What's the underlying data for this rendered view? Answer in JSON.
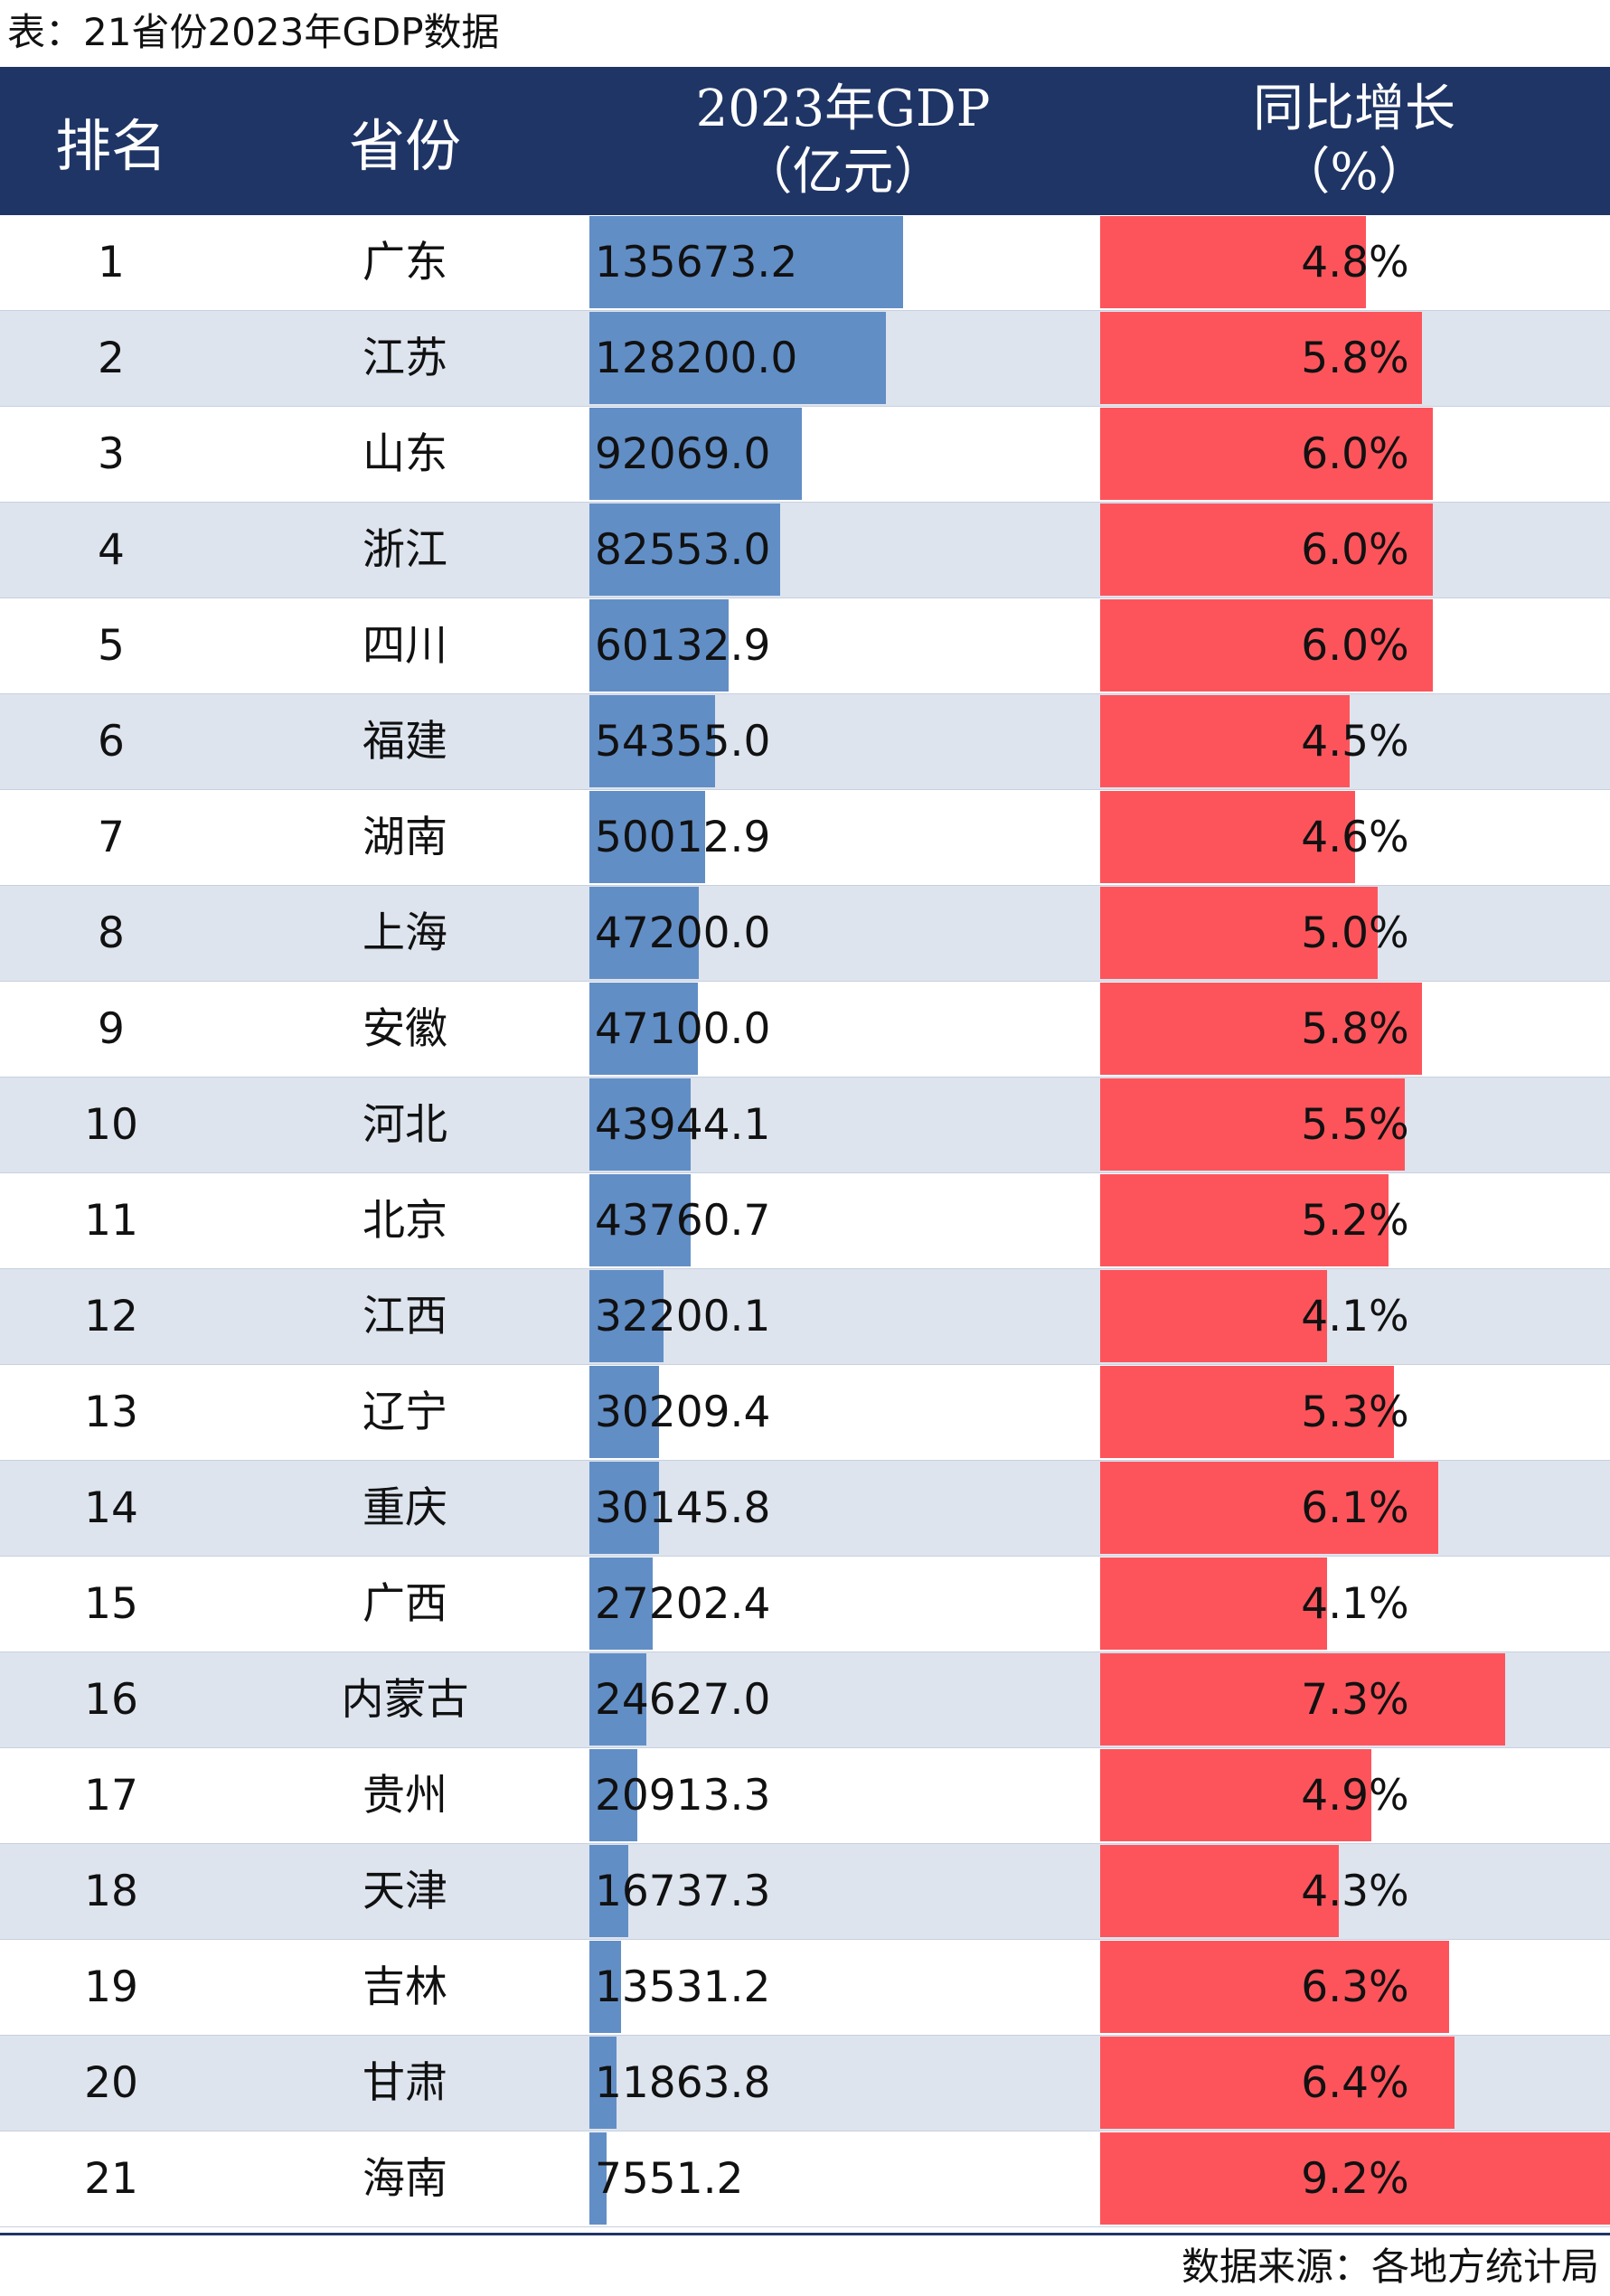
{
  "caption": "表：21省份2023年GDP数据",
  "header": {
    "rank": "排名",
    "province": "省份",
    "gdp_line1": "2023年GDP",
    "gdp_line2": "（亿元）",
    "growth_line1": "同比增长",
    "growth_line2": "（%）"
  },
  "colors": {
    "header_bg": "#1f3566",
    "gdp_bar": "#628ec6",
    "growth_bar": "#fd545c",
    "stripe": "#dde4ee"
  },
  "chart_data": {
    "type": "table",
    "columns": [
      "排名",
      "省份",
      "2023年GDP（亿元）",
      "同比增长（%）"
    ],
    "gdp_max": 135673.2,
    "growth_max": 9.2,
    "rows": [
      {
        "rank": "1",
        "province": "广东",
        "gdp": 135673.2,
        "gdp_label": "135673.2",
        "growth": 4.8,
        "growth_label": "4.8%"
      },
      {
        "rank": "2",
        "province": "江苏",
        "gdp": 128200.0,
        "gdp_label": "128200.0",
        "growth": 5.8,
        "growth_label": "5.8%"
      },
      {
        "rank": "3",
        "province": "山东",
        "gdp": 92069.0,
        "gdp_label": "92069.0",
        "growth": 6.0,
        "growth_label": "6.0%"
      },
      {
        "rank": "4",
        "province": "浙江",
        "gdp": 82553.0,
        "gdp_label": "82553.0",
        "growth": 6.0,
        "growth_label": "6.0%"
      },
      {
        "rank": "5",
        "province": "四川",
        "gdp": 60132.9,
        "gdp_label": "60132.9",
        "growth": 6.0,
        "growth_label": "6.0%"
      },
      {
        "rank": "6",
        "province": "福建",
        "gdp": 54355.0,
        "gdp_label": "54355.0",
        "growth": 4.5,
        "growth_label": "4.5%"
      },
      {
        "rank": "7",
        "province": "湖南",
        "gdp": 50012.9,
        "gdp_label": "50012.9",
        "growth": 4.6,
        "growth_label": "4.6%"
      },
      {
        "rank": "8",
        "province": "上海",
        "gdp": 47200.0,
        "gdp_label": "47200.0",
        "growth": 5.0,
        "growth_label": "5.0%"
      },
      {
        "rank": "9",
        "province": "安徽",
        "gdp": 47100.0,
        "gdp_label": "47100.0",
        "growth": 5.8,
        "growth_label": "5.8%"
      },
      {
        "rank": "10",
        "province": "河北",
        "gdp": 43944.1,
        "gdp_label": "43944.1",
        "growth": 5.5,
        "growth_label": "5.5%"
      },
      {
        "rank": "11",
        "province": "北京",
        "gdp": 43760.7,
        "gdp_label": "43760.7",
        "growth": 5.2,
        "growth_label": "5.2%"
      },
      {
        "rank": "12",
        "province": "江西",
        "gdp": 32200.1,
        "gdp_label": "32200.1",
        "growth": 4.1,
        "growth_label": "4.1%"
      },
      {
        "rank": "13",
        "province": "辽宁",
        "gdp": 30209.4,
        "gdp_label": "30209.4",
        "growth": 5.3,
        "growth_label": "5.3%"
      },
      {
        "rank": "14",
        "province": "重庆",
        "gdp": 30145.8,
        "gdp_label": "30145.8",
        "growth": 6.1,
        "growth_label": "6.1%"
      },
      {
        "rank": "15",
        "province": "广西",
        "gdp": 27202.4,
        "gdp_label": "27202.4",
        "growth": 4.1,
        "growth_label": "4.1%"
      },
      {
        "rank": "16",
        "province": "内蒙古",
        "gdp": 24627.0,
        "gdp_label": "24627.0",
        "growth": 7.3,
        "growth_label": "7.3%"
      },
      {
        "rank": "17",
        "province": "贵州",
        "gdp": 20913.3,
        "gdp_label": "20913.3",
        "growth": 4.9,
        "growth_label": "4.9%"
      },
      {
        "rank": "18",
        "province": "天津",
        "gdp": 16737.3,
        "gdp_label": "16737.3",
        "growth": 4.3,
        "growth_label": "4.3%"
      },
      {
        "rank": "19",
        "province": "吉林",
        "gdp": 13531.2,
        "gdp_label": "13531.2",
        "growth": 6.3,
        "growth_label": "6.3%"
      },
      {
        "rank": "20",
        "province": "甘肃",
        "gdp": 11863.8,
        "gdp_label": "11863.8",
        "growth": 6.4,
        "growth_label": "6.4%"
      },
      {
        "rank": "21",
        "province": "海南",
        "gdp": 7551.2,
        "gdp_label": "7551.2",
        "growth": 9.2,
        "growth_label": "9.2%"
      }
    ]
  },
  "source": "数据来源：各地方统计局"
}
